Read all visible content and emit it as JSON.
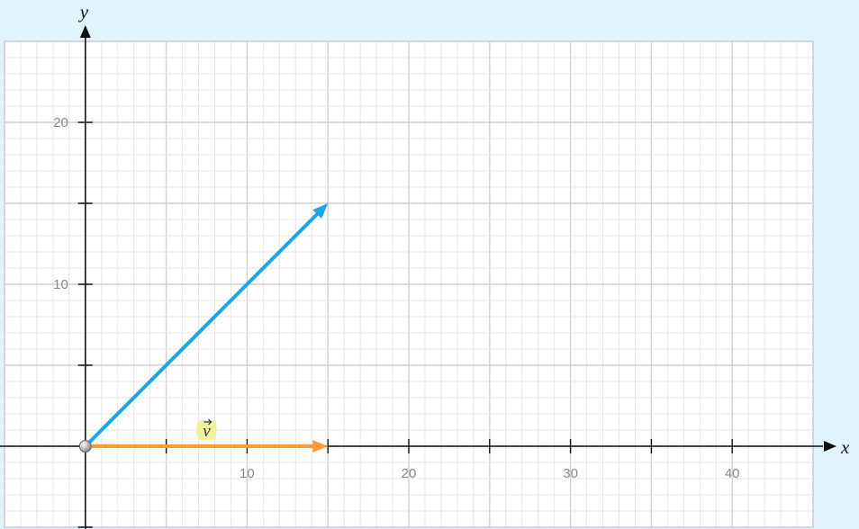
{
  "chart_data": {
    "type": "vector-diagram",
    "xlabel": "x",
    "ylabel": "y",
    "xlim": [
      -5,
      45
    ],
    "ylim": [
      -5,
      25
    ],
    "grid": true,
    "minor_grid_step": 1,
    "major_grid_step": 5,
    "x_ticks": [
      {
        "value": 5,
        "label": ""
      },
      {
        "value": 10,
        "label": "10"
      },
      {
        "value": 15,
        "label": ""
      },
      {
        "value": 20,
        "label": "20"
      },
      {
        "value": 25,
        "label": ""
      },
      {
        "value": 30,
        "label": "30"
      },
      {
        "value": 35,
        "label": ""
      },
      {
        "value": 40,
        "label": "40"
      }
    ],
    "y_ticks": [
      {
        "value": -5,
        "label": ""
      },
      {
        "value": 5,
        "label": ""
      },
      {
        "value": 10,
        "label": "10"
      },
      {
        "value": 15,
        "label": ""
      },
      {
        "value": 20,
        "label": "20"
      }
    ],
    "origin_point": {
      "x": 0,
      "y": 0
    },
    "vectors": [
      {
        "id": "vector-v",
        "label": "v",
        "from": [
          0,
          0
        ],
        "to": [
          15,
          0
        ],
        "color": "#ff9933",
        "label_at": [
          7.5,
          0
        ]
      },
      {
        "id": "vector-blue",
        "label": "",
        "from": [
          0,
          0
        ],
        "to": [
          15,
          15
        ],
        "color": "#1aa6ef"
      }
    ],
    "colors": {
      "background": "#e1f4fc",
      "plot_area": "#ffffff",
      "grid_minor": "#e6e6e6",
      "grid_major": "#d0d0d0",
      "axis": "#111111",
      "label_highlight": "#eef29a"
    }
  }
}
